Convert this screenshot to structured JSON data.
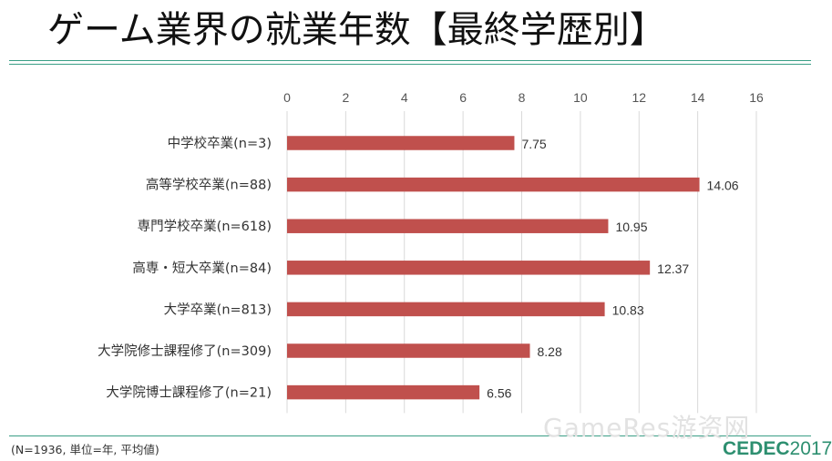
{
  "title": "ゲーム業界の就業年数【最終学歴別】",
  "note": "(N=1936, 単位=年, 平均値)",
  "watermark": "GameRes游资网",
  "logo": {
    "mark": "CEDEC",
    "year": "2017"
  },
  "colors": {
    "bar": "#c0504d",
    "accent": "#3a9e86",
    "grid": "#d9d9d9"
  },
  "chart_data": {
    "type": "bar",
    "orientation": "horizontal",
    "categories": [
      "中学校卒業(n=3)",
      "高等学校卒業(n=88)",
      "専門学校卒業(n=618)",
      "高専・短大卒業(n=84)",
      "大学卒業(n=813)",
      "大学院修士課程修了(n=309)",
      "大学院博士課程修了(n=21)"
    ],
    "values": [
      7.75,
      14.06,
      10.95,
      12.37,
      10.83,
      8.28,
      6.56
    ],
    "value_labels": [
      "7.75",
      "14.06",
      "10.95",
      "12.37",
      "10.83",
      "8.28",
      "6.56"
    ],
    "xlim": [
      0,
      16
    ],
    "xticks": [
      0,
      2,
      4,
      6,
      8,
      10,
      12,
      14,
      16
    ],
    "axis_position": "top",
    "grid": true,
    "legend": "none"
  }
}
